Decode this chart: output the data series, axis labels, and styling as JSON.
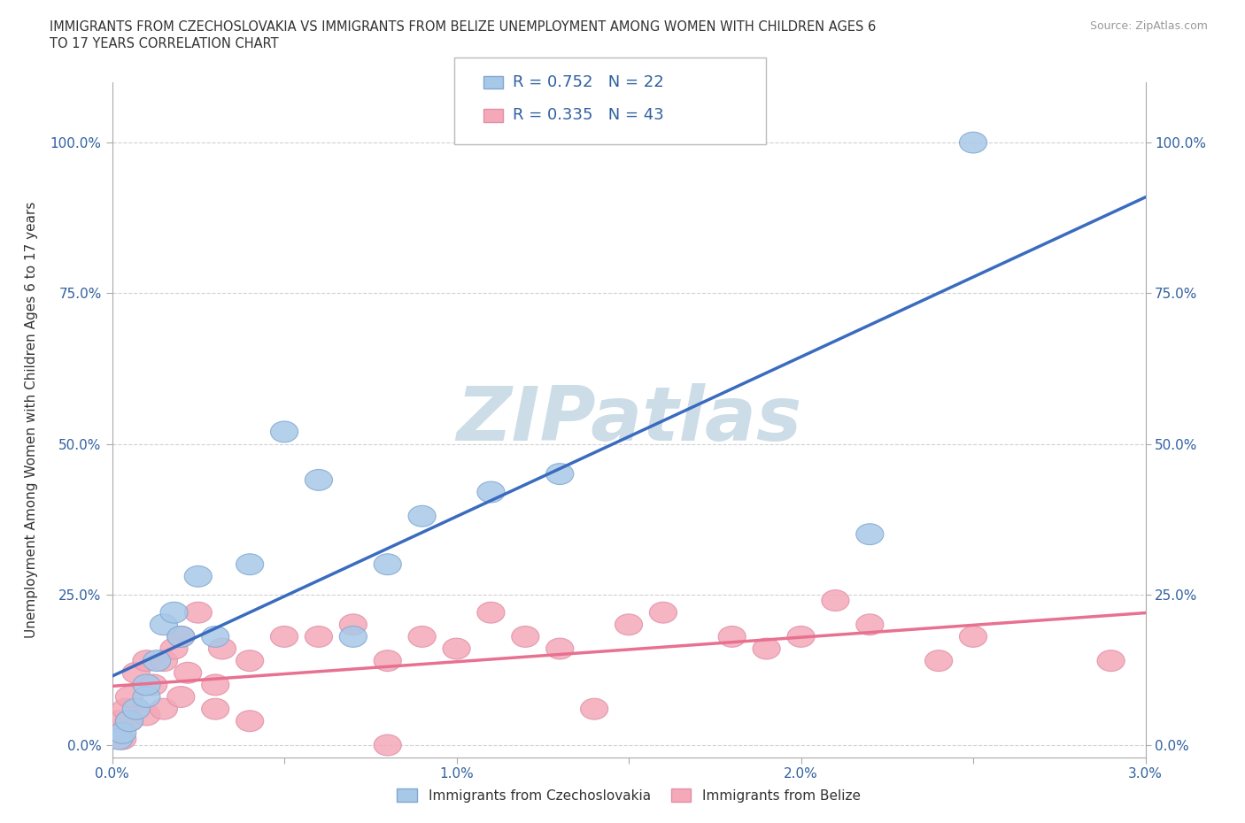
{
  "title_line1": "IMMIGRANTS FROM CZECHOSLOVAKIA VS IMMIGRANTS FROM BELIZE UNEMPLOYMENT AMONG WOMEN WITH CHILDREN AGES 6",
  "title_line2": "TO 17 YEARS CORRELATION CHART",
  "source": "Source: ZipAtlas.com",
  "ylabel": "Unemployment Among Women with Children Ages 6 to 17 years",
  "xlim": [
    0.0,
    0.03
  ],
  "ylim": [
    -0.02,
    1.1
  ],
  "x_ticks": [
    0.0,
    0.005,
    0.01,
    0.015,
    0.02,
    0.025,
    0.03
  ],
  "x_tick_labels": [
    "0.0%",
    "",
    "1.0%",
    "",
    "2.0%",
    "",
    "3.0%"
  ],
  "y_ticks": [
    0.0,
    0.25,
    0.5,
    0.75,
    1.0
  ],
  "y_tick_labels": [
    "0.0%",
    "25.0%",
    "50.0%",
    "75.0%",
    "100.0%"
  ],
  "color_czech": "#a8c8e8",
  "color_belize": "#f4a8b8",
  "line_color_czech": "#3a6bbf",
  "line_color_belize": "#e87090",
  "watermark": "ZIPatlas",
  "watermark_color": "#ccdde8",
  "czech_x": [
    0.0002,
    0.0003,
    0.0005,
    0.0007,
    0.001,
    0.001,
    0.0013,
    0.0015,
    0.0018,
    0.002,
    0.0025,
    0.003,
    0.004,
    0.005,
    0.006,
    0.007,
    0.008,
    0.009,
    0.011,
    0.013,
    0.022,
    0.025
  ],
  "czech_y": [
    0.01,
    0.02,
    0.04,
    0.06,
    0.08,
    0.1,
    0.14,
    0.2,
    0.22,
    0.18,
    0.28,
    0.18,
    0.3,
    0.52,
    0.44,
    0.18,
    0.3,
    0.38,
    0.42,
    0.45,
    0.35,
    1.0
  ],
  "belize_x": [
    0.0001,
    0.0002,
    0.0003,
    0.0004,
    0.0005,
    0.0005,
    0.0007,
    0.001,
    0.001,
    0.0012,
    0.0015,
    0.0015,
    0.0018,
    0.002,
    0.002,
    0.0022,
    0.0025,
    0.003,
    0.003,
    0.0032,
    0.004,
    0.004,
    0.005,
    0.006,
    0.007,
    0.008,
    0.009,
    0.01,
    0.011,
    0.012,
    0.013,
    0.015,
    0.016,
    0.018,
    0.019,
    0.02,
    0.021,
    0.022,
    0.024,
    0.025,
    0.014,
    0.008,
    0.029
  ],
  "belize_y": [
    0.02,
    0.04,
    0.01,
    0.06,
    0.08,
    0.04,
    0.12,
    0.14,
    0.05,
    0.1,
    0.14,
    0.06,
    0.16,
    0.18,
    0.08,
    0.12,
    0.22,
    0.1,
    0.06,
    0.16,
    0.14,
    0.04,
    0.18,
    0.18,
    0.2,
    0.14,
    0.18,
    0.16,
    0.22,
    0.18,
    0.16,
    0.2,
    0.22,
    0.18,
    0.16,
    0.18,
    0.24,
    0.2,
    0.14,
    0.18,
    0.06,
    0.0,
    0.14
  ],
  "background_color": "#ffffff"
}
